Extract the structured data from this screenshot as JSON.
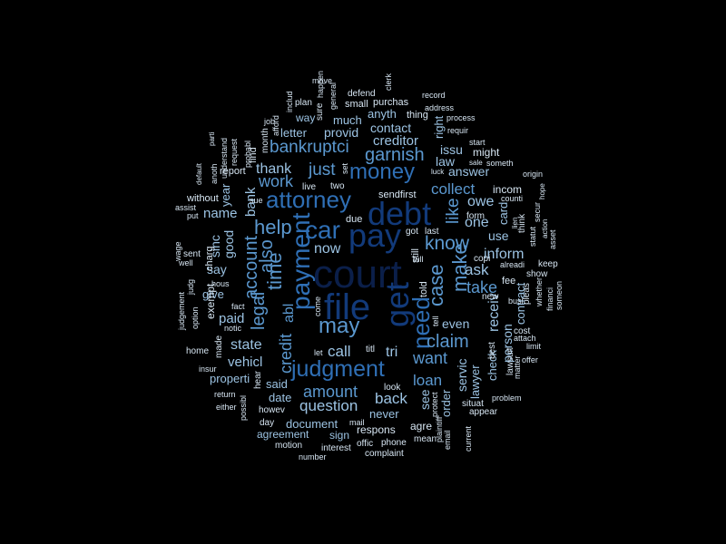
{
  "palette": {
    "background": "#000000",
    "darkest": "#0b1f4a",
    "dark": "#123a7a",
    "mid": "#2f6fb5",
    "light": "#5b98cf",
    "pale": "#9cc3e3",
    "faint": "#d7e6f3"
  },
  "words": [
    {
      "text": "court",
      "color": "#0b1f4a"
    },
    {
      "text": "file",
      "color": "#123a7a"
    },
    {
      "text": "debt",
      "color": "#123a7a"
    },
    {
      "text": "pay",
      "color": "#123a7a"
    },
    {
      "text": "get",
      "color": "#123a7a"
    },
    {
      "text": "payment",
      "color": "#2f6fb5"
    },
    {
      "text": "judgment",
      "color": "#2f6fb5"
    },
    {
      "text": "car",
      "color": "#2f6fb5"
    },
    {
      "text": "attorney",
      "color": "#2f6fb5"
    },
    {
      "text": "money",
      "color": "#2f6fb5"
    },
    {
      "text": "need",
      "color": "#2f6fb5"
    },
    {
      "text": "may",
      "color": "#5b98cf"
    },
    {
      "text": "case",
      "color": "#5b98cf"
    },
    {
      "text": "time",
      "color": "#5b98cf"
    },
    {
      "text": "make",
      "color": "#5b98cf"
    },
    {
      "text": "claim",
      "color": "#5b98cf"
    },
    {
      "text": "help",
      "color": "#5b98cf"
    },
    {
      "text": "know",
      "color": "#5b98cf"
    },
    {
      "text": "garnish",
      "color": "#5b98cf"
    },
    {
      "text": "bankruptci",
      "color": "#5b98cf"
    },
    {
      "text": "legal",
      "color": "#5b98cf"
    },
    {
      "text": "also",
      "color": "#5b98cf"
    },
    {
      "text": "account",
      "color": "#5b98cf"
    },
    {
      "text": "like",
      "color": "#5b98cf"
    },
    {
      "text": "just",
      "color": "#5b98cf"
    },
    {
      "text": "credit",
      "color": "#5b98cf"
    },
    {
      "text": "abl",
      "color": "#5b98cf"
    },
    {
      "text": "amount",
      "color": "#5b98cf"
    },
    {
      "text": "work",
      "color": "#5b98cf"
    },
    {
      "text": "collect",
      "color": "#5b98cf"
    },
    {
      "text": "loan",
      "color": "#5b98cf"
    },
    {
      "text": "want",
      "color": "#5b98cf"
    },
    {
      "text": "take",
      "color": "#5b98cf"
    },
    {
      "text": "question",
      "color": "#9cc3e3"
    },
    {
      "text": "back",
      "color": "#9cc3e3"
    },
    {
      "text": "call",
      "color": "#9cc3e3"
    },
    {
      "text": "ask",
      "color": "#9cc3e3"
    },
    {
      "text": "inform",
      "color": "#9cc3e3"
    },
    {
      "text": "state",
      "color": "#9cc3e3"
    },
    {
      "text": "thank",
      "color": "#9cc3e3"
    },
    {
      "text": "now",
      "color": "#9cc3e3"
    },
    {
      "text": "tri",
      "color": "#9cc3e3"
    },
    {
      "text": "owe",
      "color": "#9cc3e3"
    },
    {
      "text": "one",
      "color": "#9cc3e3"
    },
    {
      "text": "receiv",
      "color": "#9cc3e3"
    },
    {
      "text": "creditor",
      "color": "#9cc3e3"
    },
    {
      "text": "paid",
      "color": "#9cc3e3"
    },
    {
      "text": "bank",
      "color": "#9cc3e3"
    },
    {
      "text": "name",
      "color": "#9cc3e3"
    },
    {
      "text": "say",
      "color": "#9cc3e3"
    },
    {
      "text": "vehicl",
      "color": "#9cc3e3"
    },
    {
      "text": "contact",
      "color": "#9cc3e3"
    },
    {
      "text": "answer",
      "color": "#9cc3e3"
    },
    {
      "text": "provid",
      "color": "#9cc3e3"
    },
    {
      "text": "much",
      "color": "#9cc3e3"
    },
    {
      "text": "use",
      "color": "#9cc3e3"
    },
    {
      "text": "see",
      "color": "#9cc3e3"
    },
    {
      "text": "even",
      "color": "#9cc3e3"
    },
    {
      "text": "good",
      "color": "#9cc3e3"
    },
    {
      "text": "sinc",
      "color": "#9cc3e3"
    },
    {
      "text": "servic",
      "color": "#9cc3e3"
    },
    {
      "text": "person",
      "color": "#9cc3e3"
    },
    {
      "text": "contract",
      "color": "#9cc3e3"
    },
    {
      "text": "lawyer",
      "color": "#9cc3e3"
    },
    {
      "text": "check",
      "color": "#9cc3e3"
    },
    {
      "text": "document",
      "color": "#9cc3e3"
    },
    {
      "text": "issu",
      "color": "#9cc3e3"
    },
    {
      "text": "letter",
      "color": "#9cc3e3"
    },
    {
      "text": "law",
      "color": "#9cc3e3"
    },
    {
      "text": "order",
      "color": "#9cc3e3"
    },
    {
      "text": "never",
      "color": "#9cc3e3"
    },
    {
      "text": "said",
      "color": "#9cc3e3"
    },
    {
      "text": "date",
      "color": "#9cc3e3"
    },
    {
      "text": "properti",
      "color": "#9cc3e3"
    },
    {
      "text": "agreement",
      "color": "#9cc3e3"
    },
    {
      "text": "sign",
      "color": "#9cc3e3"
    },
    {
      "text": "anyth",
      "color": "#9cc3e3"
    },
    {
      "text": "way",
      "color": "#9cc3e3"
    },
    {
      "text": "year",
      "color": "#9cc3e3"
    },
    {
      "text": "give",
      "color": "#9cc3e3"
    },
    {
      "text": "card",
      "color": "#9cc3e3"
    },
    {
      "text": "right",
      "color": "#9cc3e3"
    },
    {
      "text": "respons",
      "color": "#d7e6f3"
    },
    {
      "text": "agre",
      "color": "#d7e6f3"
    },
    {
      "text": "might",
      "color": "#d7e6f3"
    },
    {
      "text": "incom",
      "color": "#d7e6f3"
    },
    {
      "text": "exempt",
      "color": "#d7e6f3"
    },
    {
      "text": "still",
      "color": "#d7e6f3"
    },
    {
      "text": "told",
      "color": "#d7e6f3"
    },
    {
      "text": "two",
      "color": "#d7e6f3"
    },
    {
      "text": "live",
      "color": "#d7e6f3"
    },
    {
      "text": "sendfirst",
      "color": "#d7e6f3"
    },
    {
      "text": "due",
      "color": "#d7e6f3"
    },
    {
      "text": "report",
      "color": "#d7e6f3"
    },
    {
      "text": "find",
      "color": "#d7e6f3"
    },
    {
      "text": "month",
      "color": "#d7e6f3"
    },
    {
      "text": "without",
      "color": "#d7e6f3"
    },
    {
      "text": "purchas",
      "color": "#d7e6f3"
    },
    {
      "text": "small",
      "color": "#d7e6f3"
    },
    {
      "text": "thing",
      "color": "#d7e6f3"
    },
    {
      "text": "charg",
      "color": "#d7e6f3"
    },
    {
      "text": "form",
      "color": "#d7e6f3"
    },
    {
      "text": "copi",
      "color": "#d7e6f3"
    },
    {
      "text": "fee",
      "color": "#d7e6f3"
    },
    {
      "text": "best",
      "color": "#d7e6f3"
    },
    {
      "text": "show",
      "color": "#d7e6f3"
    },
    {
      "text": "keep",
      "color": "#d7e6f3"
    },
    {
      "text": "cost",
      "color": "#d7e6f3"
    },
    {
      "text": "pleas",
      "color": "#d7e6f3"
    },
    {
      "text": "new",
      "color": "#d7e6f3"
    },
    {
      "text": "situat",
      "color": "#d7e6f3"
    },
    {
      "text": "appear",
      "color": "#d7e6f3"
    },
    {
      "text": "problem",
      "color": "#d7e6f3"
    },
    {
      "text": "offer",
      "color": "#d7e6f3"
    },
    {
      "text": "limit",
      "color": "#d7e6f3"
    },
    {
      "text": "attach",
      "color": "#d7e6f3"
    },
    {
      "text": "plaintiff",
      "color": "#d7e6f3"
    },
    {
      "text": "protect",
      "color": "#d7e6f3"
    },
    {
      "text": "current",
      "color": "#d7e6f3"
    },
    {
      "text": "email",
      "color": "#d7e6f3"
    },
    {
      "text": "mean",
      "color": "#d7e6f3"
    },
    {
      "text": "complaint",
      "color": "#d7e6f3"
    },
    {
      "text": "phone",
      "color": "#d7e6f3"
    },
    {
      "text": "offic",
      "color": "#d7e6f3"
    },
    {
      "text": "mail",
      "color": "#d7e6f3"
    },
    {
      "text": "interest",
      "color": "#d7e6f3"
    },
    {
      "text": "number",
      "color": "#d7e6f3"
    },
    {
      "text": "motion",
      "color": "#d7e6f3"
    },
    {
      "text": "day",
      "color": "#d7e6f3"
    },
    {
      "text": "howev",
      "color": "#d7e6f3"
    },
    {
      "text": "hear",
      "color": "#d7e6f3"
    },
    {
      "text": "possibl",
      "color": "#d7e6f3"
    },
    {
      "text": "either",
      "color": "#d7e6f3"
    },
    {
      "text": "return",
      "color": "#d7e6f3"
    },
    {
      "text": "insur",
      "color": "#d7e6f3"
    },
    {
      "text": "home",
      "color": "#d7e6f3"
    },
    {
      "text": "sent",
      "color": "#d7e6f3"
    },
    {
      "text": "option",
      "color": "#d7e6f3"
    },
    {
      "text": "made",
      "color": "#d7e6f3"
    },
    {
      "text": "notic",
      "color": "#d7e6f3"
    },
    {
      "text": "fact",
      "color": "#d7e6f3"
    },
    {
      "text": "hous",
      "color": "#d7e6f3"
    },
    {
      "text": "judg",
      "color": "#d7e6f3"
    },
    {
      "text": "judgement",
      "color": "#d7e6f3"
    },
    {
      "text": "well",
      "color": "#d7e6f3"
    },
    {
      "text": "wage",
      "color": "#d7e6f3"
    },
    {
      "text": "put",
      "color": "#d7e6f3"
    },
    {
      "text": "assist",
      "color": "#d7e6f3"
    },
    {
      "text": "anoth",
      "color": "#d7e6f3"
    },
    {
      "text": "default",
      "color": "#d7e6f3"
    },
    {
      "text": "parti",
      "color": "#d7e6f3"
    },
    {
      "text": "understand",
      "color": "#d7e6f3"
    },
    {
      "text": "request",
      "color": "#d7e6f3"
    },
    {
      "text": "sue",
      "color": "#d7e6f3"
    },
    {
      "text": "probabl",
      "color": "#d7e6f3"
    },
    {
      "text": "job",
      "color": "#d7e6f3"
    },
    {
      "text": "afford",
      "color": "#d7e6f3"
    },
    {
      "text": "includ",
      "color": "#d7e6f3"
    },
    {
      "text": "plan",
      "color": "#d7e6f3"
    },
    {
      "text": "move",
      "color": "#d7e6f3"
    },
    {
      "text": "happen",
      "color": "#d7e6f3"
    },
    {
      "text": "sure",
      "color": "#d7e6f3"
    },
    {
      "text": "general",
      "color": "#d7e6f3"
    },
    {
      "text": "defend",
      "color": "#d7e6f3"
    },
    {
      "text": "clerk",
      "color": "#d7e6f3"
    },
    {
      "text": "record",
      "color": "#d7e6f3"
    },
    {
      "text": "address",
      "color": "#d7e6f3"
    },
    {
      "text": "process",
      "color": "#d7e6f3"
    },
    {
      "text": "requir",
      "color": "#d7e6f3"
    },
    {
      "text": "start",
      "color": "#d7e6f3"
    },
    {
      "text": "sale",
      "color": "#d7e6f3"
    },
    {
      "text": "someth",
      "color": "#d7e6f3"
    },
    {
      "text": "origin",
      "color": "#d7e6f3"
    },
    {
      "text": "luck",
      "color": "#d7e6f3"
    },
    {
      "text": "counti",
      "color": "#d7e6f3"
    },
    {
      "text": "hope",
      "color": "#d7e6f3"
    },
    {
      "text": "lien",
      "color": "#d7e6f3"
    },
    {
      "text": "think",
      "color": "#d7e6f3"
    },
    {
      "text": "secur",
      "color": "#d7e6f3"
    },
    {
      "text": "action",
      "color": "#d7e6f3"
    },
    {
      "text": "statut",
      "color": "#d7e6f3"
    },
    {
      "text": "asset",
      "color": "#d7e6f3"
    },
    {
      "text": "alreadi",
      "color": "#d7e6f3"
    },
    {
      "text": "whether",
      "color": "#d7e6f3"
    },
    {
      "text": "financi",
      "color": "#d7e6f3"
    },
    {
      "text": "someon",
      "color": "#d7e6f3"
    },
    {
      "text": "busi",
      "color": "#d7e6f3"
    },
    {
      "text": "lawsuit",
      "color": "#d7e6f3"
    },
    {
      "text": "matter",
      "color": "#d7e6f3"
    },
    {
      "text": "got",
      "color": "#d7e6f3"
    },
    {
      "text": "last",
      "color": "#d7e6f3"
    },
    {
      "text": "full",
      "color": "#d7e6f3"
    },
    {
      "text": "tell",
      "color": "#d7e6f3"
    },
    {
      "text": "set",
      "color": "#d7e6f3"
    },
    {
      "text": "titl",
      "color": "#d7e6f3"
    },
    {
      "text": "let",
      "color": "#d7e6f3"
    },
    {
      "text": "come",
      "color": "#d7e6f3"
    },
    {
      "text": "look",
      "color": "#d7e6f3"
    }
  ]
}
